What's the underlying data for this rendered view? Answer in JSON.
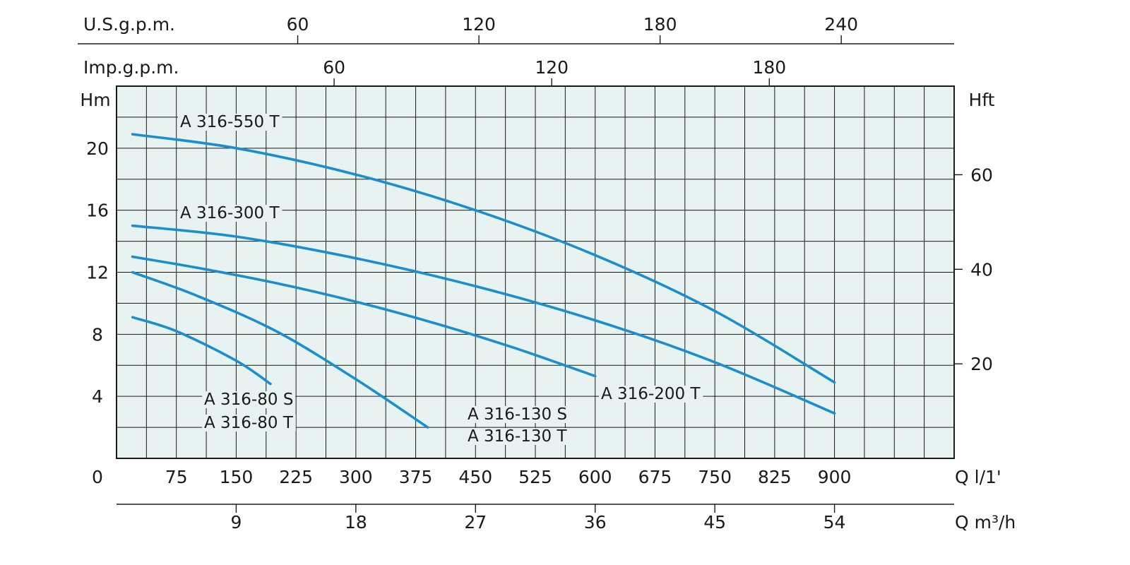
{
  "colors": {
    "plot_background": "#e8f2f0",
    "curve": "#1a8fcf",
    "ink": "#1a1a1a"
  },
  "chart_data": {
    "type": "line",
    "grid": true,
    "x_primary": {
      "title": "Q l/1'",
      "range": [
        0,
        1050
      ],
      "ticks": [
        0,
        75,
        150,
        225,
        300,
        375,
        450,
        525,
        600,
        675,
        750,
        825,
        900
      ],
      "tick_labels": [
        "0",
        "75",
        "150",
        "225",
        "300",
        "375",
        "450",
        "525",
        "600",
        "675",
        "750",
        "825",
        "900"
      ]
    },
    "x_m3h": {
      "title": "Q m³/h",
      "ticks": [
        9,
        18,
        27,
        36,
        45,
        54
      ],
      "tick_labels": [
        "9",
        "18",
        "27",
        "36",
        "45",
        "54"
      ]
    },
    "x_usgpm": {
      "title": "U.S.g.p.m.",
      "ticks": [
        60,
        120,
        180,
        240
      ],
      "tick_labels": [
        "60",
        "120",
        "180",
        "240"
      ]
    },
    "x_impgpm": {
      "title": "Imp.g.p.m.",
      "ticks": [
        60,
        120,
        180
      ],
      "tick_labels": [
        "60",
        "120",
        "180"
      ]
    },
    "y_left": {
      "title": "Hm",
      "range": [
        0,
        24
      ],
      "ticks": [
        4,
        8,
        12,
        16,
        20
      ],
      "tick_labels": [
        "4",
        "8",
        "12",
        "16",
        "20"
      ]
    },
    "y_right": {
      "title": "Hft",
      "ticks": [
        20,
        40,
        60
      ],
      "tick_labels": [
        "20",
        "40",
        "60"
      ]
    },
    "series": [
      {
        "name": "A 316-550 T",
        "x": [
          20,
          150,
          300,
          450,
          600,
          750,
          900
        ],
        "y": [
          20.9,
          20.0,
          18.3,
          16.0,
          13.1,
          9.5,
          4.9
        ]
      },
      {
        "name": "A 316-300 T",
        "x": [
          20,
          150,
          300,
          450,
          600,
          750,
          900
        ],
        "y": [
          15.0,
          14.3,
          12.9,
          11.1,
          8.9,
          6.2,
          2.9
        ]
      },
      {
        "name": "A 316-200 T",
        "x": [
          20,
          100,
          200,
          300,
          400,
          500,
          600
        ],
        "y": [
          13.0,
          12.3,
          11.3,
          10.1,
          8.7,
          7.1,
          5.3
        ]
      },
      {
        "name": "A 316-130 S / A 316-130 T",
        "x": [
          20,
          100,
          200,
          300,
          390
        ],
        "y": [
          12.0,
          10.5,
          8.2,
          5.1,
          2.0
        ]
      },
      {
        "name": "A 316-80 S / A 316-80 T",
        "x": [
          20,
          75,
          150,
          193
        ],
        "y": [
          9.1,
          8.2,
          6.3,
          4.8
        ]
      }
    ],
    "annotations": [
      {
        "text": "A 316-550 T"
      },
      {
        "text": "A 316-300 T"
      },
      {
        "text": "A 316-200 T"
      },
      {
        "text": "A 316-130 S"
      },
      {
        "text": "A 316-130 T"
      },
      {
        "text": "A 316-80 S"
      },
      {
        "text": "A 316-80 T"
      }
    ]
  }
}
